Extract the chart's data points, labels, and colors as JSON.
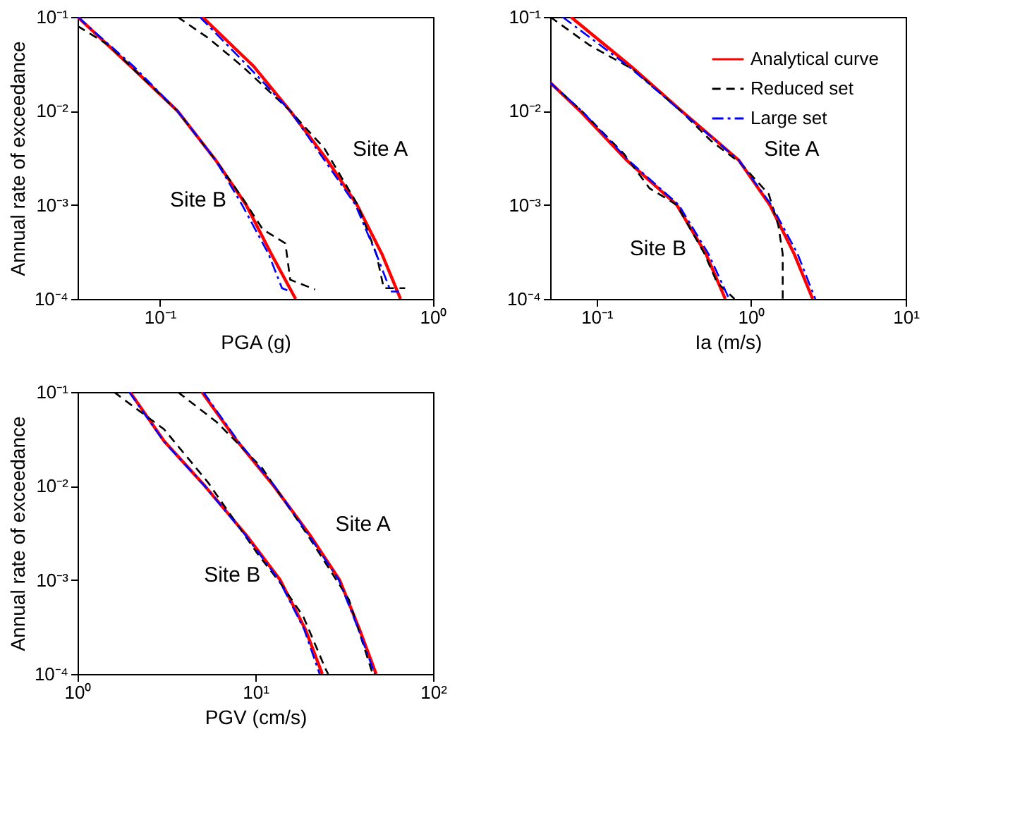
{
  "chart_data": [
    {
      "type": "line",
      "xlabel": "PGA (g)",
      "ylabel": "Annual rate of exceedance",
      "log": "xy",
      "grid": false,
      "legend": false,
      "xlim": [
        0.05,
        1
      ],
      "xticks": [
        {
          "value": 0.1,
          "label": "10⁻¹"
        },
        {
          "value": 1,
          "label": "10⁰"
        }
      ],
      "ylim": [
        0.0001,
        0.1
      ],
      "yticks": [
        {
          "value": 0.0001,
          "label": "10⁻⁴"
        },
        {
          "value": 0.001,
          "label": "10⁻³"
        },
        {
          "value": 0.01,
          "label": "10⁻²"
        },
        {
          "value": 0.1,
          "label": "10⁻¹"
        }
      ],
      "annotations": [
        "Site A",
        "Site B"
      ],
      "series": [
        {
          "color": "#ff0000",
          "line_style": "solid",
          "x": [
            0.143,
            0.22,
            0.3,
            0.41,
            0.527,
            0.65,
            0.76
          ],
          "values": [
            0.1,
            0.03,
            0.01,
            0.003,
            0.001,
            0.0003,
            0.0001
          ]
        },
        {
          "color": "#000000",
          "line_style": "dashed",
          "x": [
            0.116,
            0.15,
            0.2,
            0.3,
            0.4,
            0.53,
            0.62,
            0.66,
            0.79
          ],
          "values": [
            0.1,
            0.06,
            0.03,
            0.01,
            0.004,
            0.001,
            0.0003,
            0.00013,
            0.00013
          ]
        },
        {
          "color": "#0000ff",
          "line_style": "dotted",
          "x": [
            0.14,
            0.21,
            0.3,
            0.4,
            0.52,
            0.62,
            0.7,
            0.75
          ],
          "values": [
            0.1,
            0.03,
            0.01,
            0.003,
            0.001,
            0.0003,
            0.00012,
            0.00012
          ]
        },
        {
          "color": "#ff0000",
          "line_style": "solid",
          "x": [
            0.05,
            0.078,
            0.116,
            0.16,
            0.207,
            0.256,
            0.314
          ],
          "values": [
            0.1,
            0.03,
            0.01,
            0.003,
            0.001,
            0.0003,
            0.0001
          ]
        },
        {
          "color": "#000000",
          "line_style": "dashed",
          "x": [
            0.05,
            0.065,
            0.078,
            0.116,
            0.16,
            0.2,
            0.238,
            0.288,
            0.3,
            0.37
          ],
          "values": [
            0.08,
            0.05,
            0.03,
            0.01,
            0.003,
            0.0012,
            0.00055,
            0.00039,
            0.00016,
            0.000126
          ]
        },
        {
          "color": "#0000ff",
          "line_style": "dotted",
          "x": [
            0.05,
            0.08,
            0.116,
            0.16,
            0.2,
            0.25,
            0.28,
            0.3
          ],
          "values": [
            0.1,
            0.03,
            0.01,
            0.003,
            0.001,
            0.0003,
            0.00013,
            0.00012
          ]
        }
      ]
    },
    {
      "type": "line",
      "xlabel": "Ia (m/s)",
      "log": "xy",
      "grid": false,
      "legend": "top right",
      "xlim": [
        0.05,
        10
      ],
      "xticks": [
        {
          "value": 0.1,
          "label": "10⁻¹"
        },
        {
          "value": 1,
          "label": "10⁰"
        },
        {
          "value": 10,
          "label": "10¹"
        }
      ],
      "ylim": [
        0.0001,
        0.1
      ],
      "yticks": [
        {
          "value": 0.0001,
          "label": "10⁻⁴"
        },
        {
          "value": 0.001,
          "label": "10⁻³"
        },
        {
          "value": 0.01,
          "label": "10⁻²"
        },
        {
          "value": 0.1,
          "label": "10⁻¹"
        }
      ],
      "annotations": [
        "Site A",
        "Site B"
      ],
      "series": [
        {
          "name": "Analytical curve",
          "color": "#ff0000",
          "line_style": "solid",
          "x": [
            0.068,
            0.166,
            0.354,
            0.83,
            1.32,
            1.9,
            2.5
          ],
          "values": [
            0.1,
            0.03,
            0.01,
            0.003,
            0.001,
            0.0003,
            0.0001
          ]
        },
        {
          "name": "Reduced set",
          "color": "#000000",
          "line_style": "dashed",
          "x": [
            0.05,
            0.09,
            0.17,
            0.35,
            0.55,
            0.85,
            1.3,
            1.5,
            1.6,
            1.6
          ],
          "values": [
            0.1,
            0.05,
            0.028,
            0.01,
            0.0048,
            0.0028,
            0.0013,
            0.0006,
            0.0003,
            0.0001
          ]
        },
        {
          "name": "Large set",
          "color": "#0000ff",
          "line_style": "dotted",
          "x": [
            0.06,
            0.16,
            0.35,
            0.83,
            1.35,
            2.0,
            2.6
          ],
          "values": [
            0.1,
            0.03,
            0.01,
            0.003,
            0.001,
            0.0003,
            0.0001
          ]
        },
        {
          "color": "#ff0000",
          "line_style": "solid",
          "x": [
            0.05,
            0.078,
            0.156,
            0.33,
            0.51,
            0.68
          ],
          "values": [
            0.02,
            0.01,
            0.003,
            0.001,
            0.0003,
            0.0001
          ]
        },
        {
          "color": "#000000",
          "line_style": "dashed",
          "x": [
            0.05,
            0.08,
            0.15,
            0.22,
            0.33,
            0.5,
            0.6,
            0.78
          ],
          "values": [
            0.02,
            0.01,
            0.0035,
            0.0015,
            0.001,
            0.0003,
            0.00015,
            0.0001
          ]
        },
        {
          "color": "#0000ff",
          "line_style": "dotted",
          "x": [
            0.05,
            0.08,
            0.16,
            0.34,
            0.53,
            0.72
          ],
          "values": [
            0.02,
            0.01,
            0.003,
            0.001,
            0.0003,
            0.0001
          ]
        }
      ]
    },
    {
      "type": "line",
      "xlabel": "PGV (cm/s)",
      "ylabel": "Annual rate of exceedance",
      "log": "xy",
      "grid": false,
      "legend": false,
      "xlim": [
        1,
        100
      ],
      "xticks": [
        {
          "value": 1,
          "label": "10⁰"
        },
        {
          "value": 10,
          "label": "10¹"
        },
        {
          "value": 100,
          "label": "10²"
        }
      ],
      "ylim": [
        0.0001,
        0.1
      ],
      "yticks": [
        {
          "value": 0.0001,
          "label": "10⁻⁴"
        },
        {
          "value": 0.001,
          "label": "10⁻³"
        },
        {
          "value": 0.01,
          "label": "10⁻²"
        },
        {
          "value": 0.1,
          "label": "10⁻¹"
        }
      ],
      "annotations": [
        "Site A",
        "Site B"
      ],
      "series": [
        {
          "color": "#ff0000",
          "line_style": "solid",
          "x": [
            5.0,
            7.9,
            12.7,
            20.3,
            29.8,
            38.5,
            47.8
          ],
          "values": [
            0.1,
            0.03,
            0.01,
            0.003,
            0.001,
            0.0003,
            0.0001
          ]
        },
        {
          "color": "#000000",
          "line_style": "dashed",
          "x": [
            3.66,
            6.05,
            10.9,
            19.7,
            33.6,
            45,
            46
          ],
          "values": [
            0.1,
            0.048,
            0.0156,
            0.003,
            0.00062,
            0.00011,
            0.0001
          ]
        },
        {
          "color": "#0000ff",
          "line_style": "dotted",
          "x": [
            5.1,
            8.0,
            12.8,
            20.0,
            29.5,
            38.0,
            47
          ],
          "values": [
            0.1,
            0.03,
            0.01,
            0.003,
            0.001,
            0.0003,
            0.0001
          ]
        },
        {
          "color": "#ff0000",
          "line_style": "solid",
          "x": [
            1.97,
            3.07,
            5.2,
            8.9,
            13.8,
            19.1,
            23.8
          ],
          "values": [
            0.1,
            0.03,
            0.01,
            0.003,
            0.001,
            0.0003,
            0.0001
          ]
        },
        {
          "color": "#000000",
          "line_style": "dashed",
          "x": [
            1.6,
            3.07,
            5.4,
            10.3,
            13.8,
            18.6,
            25,
            25.7
          ],
          "values": [
            0.1,
            0.04,
            0.011,
            0.0019,
            0.00093,
            0.00041,
            0.00011,
            0.0001
          ]
        },
        {
          "color": "#0000ff",
          "line_style": "dotted",
          "x": [
            1.95,
            3.05,
            5.2,
            8.8,
            13.6,
            18.8,
            23.0
          ],
          "values": [
            0.1,
            0.03,
            0.01,
            0.003,
            0.001,
            0.0003,
            0.0001
          ]
        }
      ]
    }
  ]
}
